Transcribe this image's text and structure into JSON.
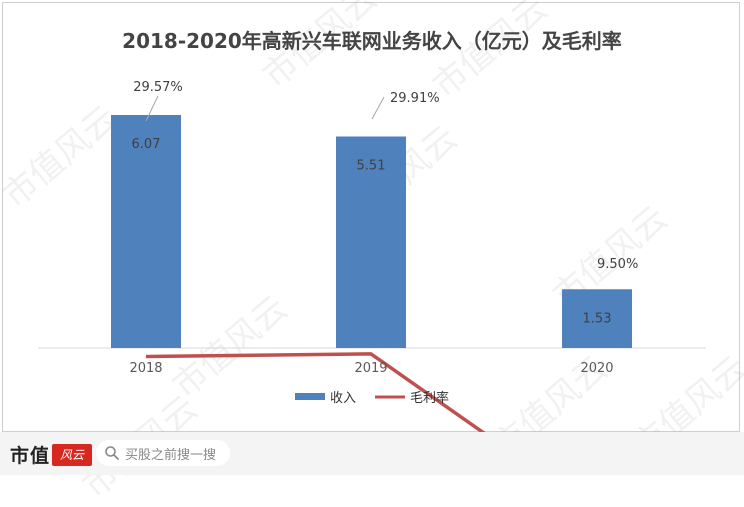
{
  "chart_data": {
    "type": "bar",
    "title": "2018-2020年高新兴车联网业务收入（亿元）及毛利率",
    "categories": [
      "2018",
      "2019",
      "2020"
    ],
    "series": [
      {
        "name": "收入",
        "kind": "bar",
        "values": [
          6.07,
          5.51,
          1.53
        ],
        "labels": [
          "6.07",
          "5.51",
          "1.53"
        ],
        "color": "#4f81bd"
      },
      {
        "name": "毛利率",
        "kind": "line",
        "values": [
          29.57,
          29.91,
          9.5
        ],
        "labels": [
          "29.57%",
          "29.91%",
          "9.50%"
        ],
        "color": "#c0504d"
      }
    ],
    "legend_position": "bottom",
    "grid": false
  },
  "watermark_text": "市值风云",
  "footer": {
    "brand_name": "市值",
    "brand_seal": "风云",
    "search_placeholder": "买股之前搜一搜"
  }
}
